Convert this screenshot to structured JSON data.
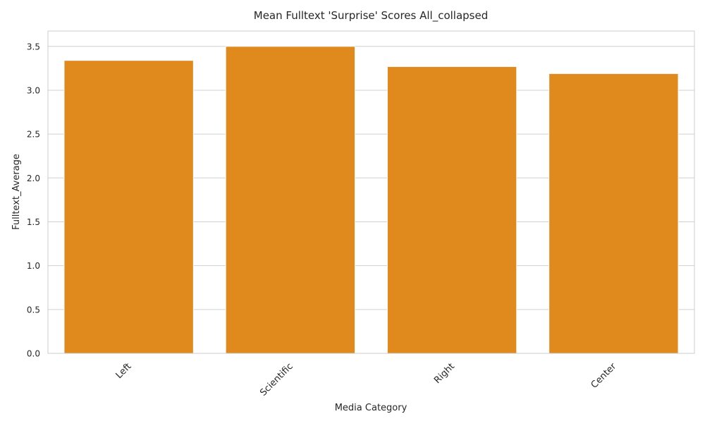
{
  "chart_data": {
    "type": "bar",
    "title": "Mean Fulltext 'Surprise' Scores All_collapsed",
    "xlabel": "Media Category",
    "ylabel": "Fulltext_Average",
    "categories": [
      "Left",
      "Scientific",
      "Right",
      "Center"
    ],
    "values": [
      3.34,
      3.5,
      3.27,
      3.19
    ],
    "ylim": [
      0,
      3.675
    ],
    "yticks": [
      "0.0",
      "0.5",
      "1.0",
      "1.5",
      "2.0",
      "2.5",
      "3.0",
      "3.5"
    ],
    "grid": true,
    "legend": "none",
    "colors": {
      "bar": "#e08a1e",
      "grid": "#d0d0d0",
      "spine": "#cccccc",
      "text": "#262626"
    }
  }
}
